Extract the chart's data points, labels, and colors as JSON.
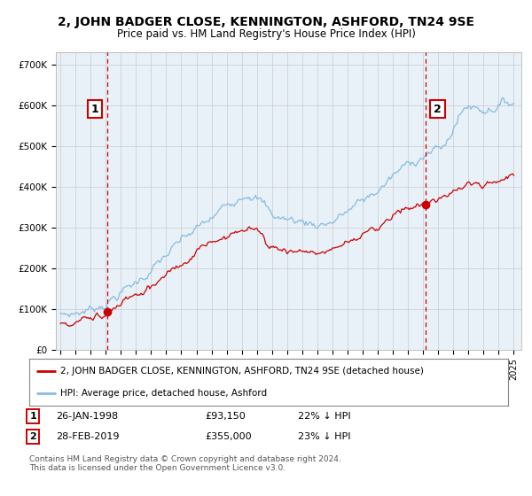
{
  "title": "2, JOHN BADGER CLOSE, KENNINGTON, ASHFORD, TN24 9SE",
  "subtitle": "Price paid vs. HM Land Registry's House Price Index (HPI)",
  "sale1_date": 1998.08,
  "sale1_price": 93150,
  "sale1_label": "1",
  "sale2_date": 2019.16,
  "sale2_price": 355000,
  "sale2_label": "2",
  "ylim": [
    0,
    730000
  ],
  "xlim_start": 1994.7,
  "xlim_end": 2025.5,
  "hpi_color": "#85bde0",
  "sale_color": "#cc0000",
  "grid_color": "#cccccc",
  "bg_color": "#ffffff",
  "plot_bg_color": "#e8f0f8",
  "legend_label_red": "2, JOHN BADGER CLOSE, KENNINGTON, ASHFORD, TN24 9SE (detached house)",
  "legend_label_blue": "HPI: Average price, detached house, Ashford",
  "footer": "Contains HM Land Registry data © Crown copyright and database right 2024.\nThis data is licensed under the Open Government Licence v3.0.",
  "yticks": [
    0,
    100000,
    200000,
    300000,
    400000,
    500000,
    600000,
    700000
  ],
  "ytick_labels": [
    "£0",
    "£100K",
    "£200K",
    "£300K",
    "£400K",
    "£500K",
    "£600K",
    "£700K"
  ],
  "hpi_knots_x": [
    1995,
    1996,
    1997,
    1998,
    1999,
    2000,
    2001,
    2002,
    2003,
    2004,
    2005,
    2006,
    2007,
    2007.5,
    2008,
    2008.5,
    2009,
    2010,
    2011,
    2012,
    2013,
    2014,
    2015,
    2016,
    2017,
    2018,
    2019,
    2020,
    2020.5,
    2021,
    2021.5,
    2022,
    2023,
    2024,
    2025
  ],
  "hpi_knots_y": [
    83000,
    90000,
    100000,
    115000,
    140000,
    165000,
    195000,
    230000,
    265000,
    295000,
    320000,
    355000,
    385000,
    390000,
    375000,
    355000,
    330000,
    320000,
    315000,
    308000,
    315000,
    340000,
    365000,
    390000,
    425000,
    455000,
    480000,
    490000,
    500000,
    545000,
    580000,
    600000,
    590000,
    600000,
    610000
  ],
  "red_knots_x": [
    1995,
    1996,
    1997,
    1998.08,
    1999,
    2000,
    2001,
    2002,
    2003,
    2004,
    2005,
    2006,
    2007,
    2007.5,
    2008,
    2008.5,
    2009,
    2010,
    2011,
    2012,
    2013,
    2014,
    2015,
    2016,
    2017,
    2018,
    2019.16,
    2020,
    2021,
    2022,
    2023,
    2024,
    2025
  ],
  "red_knots_y": [
    65000,
    70000,
    80000,
    93150,
    110000,
    130000,
    155000,
    183000,
    210000,
    235000,
    255000,
    280000,
    300000,
    305000,
    293000,
    275000,
    255000,
    248000,
    242000,
    237000,
    242000,
    262000,
    283000,
    300000,
    328000,
    348000,
    355000,
    368000,
    390000,
    410000,
    408000,
    415000,
    425000
  ]
}
